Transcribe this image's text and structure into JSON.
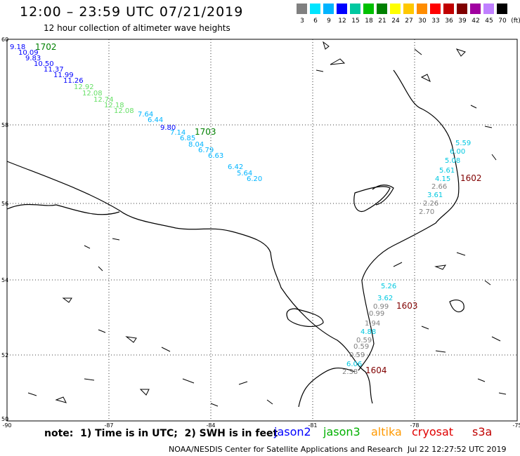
{
  "header": {
    "title": "12:00 – 23:59 UTC 07/21/2019",
    "subtitle": "12 hour collection of altimeter wave heights"
  },
  "legend": {
    "colors": [
      "#808080",
      "#00e5ff",
      "#00b4ff",
      "#0000ff",
      "#00c8a0",
      "#00c000",
      "#008000",
      "#ffff00",
      "#ffc800",
      "#ff8c00",
      "#ff0000",
      "#c00000",
      "#800000",
      "#a000a0",
      "#c080ff",
      "#000000"
    ],
    "labels": [
      "3",
      "6",
      "9",
      "12",
      "15",
      "18",
      "21",
      "24",
      "27",
      "30",
      "33",
      "36",
      "39",
      "42",
      "45",
      "70",
      "(ft)"
    ]
  },
  "axes": {
    "lat_labels": [
      "60",
      "58",
      "56",
      "54",
      "52",
      "50"
    ],
    "lon_labels": [
      "-90",
      "-87",
      "-84",
      "-81",
      "-78",
      "-75"
    ]
  },
  "tracks": [
    {
      "id": "1702",
      "color": "#008000",
      "label_pos": "top"
    },
    {
      "id": "1703",
      "color": "#008000"
    },
    {
      "id": "1602",
      "color": "#800000"
    },
    {
      "id": "1603",
      "color": "#800000"
    },
    {
      "id": "1604",
      "color": "#800000"
    }
  ],
  "wave_heights": [
    {
      "v": "9.18",
      "c": "#0000ff"
    },
    {
      "v": "10.09",
      "c": "#0000ff"
    },
    {
      "v": "9.83",
      "c": "#0000ff"
    },
    {
      "v": "10.50",
      "c": "#0000ff"
    },
    {
      "v": "11.37",
      "c": "#0000ff"
    },
    {
      "v": "11.99",
      "c": "#0000ff"
    },
    {
      "v": "11.26",
      "c": "#0000ff"
    },
    {
      "v": "12.92",
      "c": "#66e066"
    },
    {
      "v": "12.08",
      "c": "#66e066"
    },
    {
      "v": "12.74",
      "c": "#66e066"
    },
    {
      "v": "12.18",
      "c": "#66e066"
    },
    {
      "v": "12.08",
      "c": "#66e066"
    },
    {
      "v": "7.64",
      "c": "#00b4ff"
    },
    {
      "v": "6.44",
      "c": "#00b4ff"
    },
    {
      "v": "9.80",
      "c": "#0000ff"
    },
    {
      "v": "7.14",
      "c": "#00b4ff"
    },
    {
      "v": "6.85",
      "c": "#00b4ff"
    },
    {
      "v": "8.04",
      "c": "#00b4ff"
    },
    {
      "v": "6.79",
      "c": "#00b4ff"
    },
    {
      "v": "6.63",
      "c": "#00b4ff"
    },
    {
      "v": "6.42",
      "c": "#00b4ff"
    },
    {
      "v": "5.64",
      "c": "#00b4ff"
    },
    {
      "v": "6.20",
      "c": "#00b4ff"
    },
    {
      "v": "5.59",
      "c": "#00c8e0"
    },
    {
      "v": "6.00",
      "c": "#00c8e0"
    },
    {
      "v": "5.08",
      "c": "#00c8e0"
    },
    {
      "v": "5.61",
      "c": "#00c8e0"
    },
    {
      "v": "4.15",
      "c": "#00c8e0"
    },
    {
      "v": "2.66",
      "c": "#808080"
    },
    {
      "v": "3.61",
      "c": "#00c8e0"
    },
    {
      "v": "2.26",
      "c": "#808080"
    },
    {
      "v": "2.70",
      "c": "#808080"
    },
    {
      "v": "5.26",
      "c": "#00c8e0"
    },
    {
      "v": "3.62",
      "c": "#00c8e0"
    },
    {
      "v": "0.99",
      "c": "#808080"
    },
    {
      "v": "0.99",
      "c": "#808080"
    },
    {
      "v": "1.94",
      "c": "#808080"
    },
    {
      "v": "4.88",
      "c": "#00c8e0"
    },
    {
      "v": "0.59",
      "c": "#808080"
    },
    {
      "v": "0.59",
      "c": "#808080"
    },
    {
      "v": "0.59",
      "c": "#808080"
    },
    {
      "v": "6.06",
      "c": "#00c8e0"
    },
    {
      "v": "2.38",
      "c": "#808080"
    }
  ],
  "footer": {
    "note": "note:  1) Time is in UTC;  2) SWH is in feet",
    "missions": [
      {
        "name": "jason2",
        "color": "#0000ff"
      },
      {
        "name": "jason3",
        "color": "#00b000"
      },
      {
        "name": "altika",
        "color": "#ff9900"
      },
      {
        "name": "cryosat",
        "color": "#e00000"
      },
      {
        "name": "s3a",
        "color": "#c00000"
      }
    ],
    "credit": "NOAA/NESDIS Center for Satellite Applications and Research",
    "timestamp": "Jul 22 12:27:52 UTC 2019"
  }
}
